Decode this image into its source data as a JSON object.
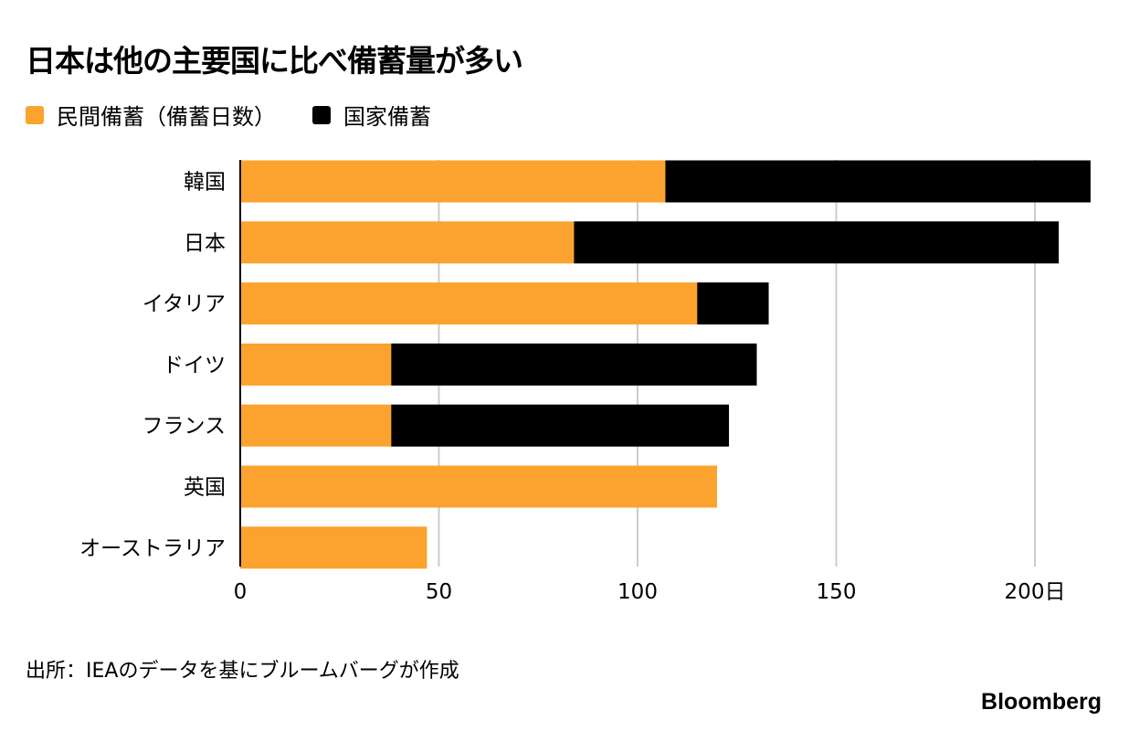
{
  "title": "日本は他の主要国に比べ備蓄量が多い",
  "source": "出所：IEAのデータを基にブルームバーグが作成",
  "brand": "Bloomberg",
  "chart_data": {
    "type": "bar",
    "orientation": "horizontal",
    "stacked": true,
    "title": "日本は他の主要国に比べ備蓄量が多い",
    "categories": [
      "韓国",
      "日本",
      "イタリア",
      "ドイツ",
      "フランス",
      "英国",
      "オーストラリア"
    ],
    "series": [
      {
        "name": "民間備蓄（備蓄日数）",
        "color": "#FBA32E",
        "values": [
          107,
          84,
          115,
          38,
          38,
          120,
          47
        ]
      },
      {
        "name": "国家備蓄",
        "color": "#000000",
        "values": [
          107,
          122,
          18,
          92,
          85,
          0,
          0
        ]
      }
    ],
    "xticks": [
      "0",
      "50",
      "100",
      "150",
      "200日"
    ],
    "xtick_values": [
      0,
      50,
      100,
      150,
      200
    ],
    "xlim": [
      0,
      215
    ],
    "grid": true,
    "legend": "top-left"
  }
}
